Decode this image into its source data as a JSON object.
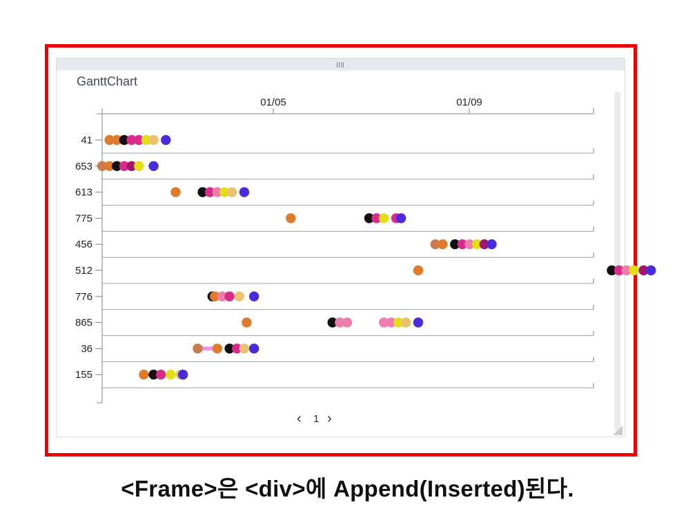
{
  "widget": {
    "title": "GanttChart"
  },
  "axis": {
    "tick_labels": [
      "01/05",
      "01/09"
    ]
  },
  "chart_data": {
    "type": "gantt",
    "title": "GanttChart",
    "x_tick_labels": [
      "01/05",
      "01/09"
    ],
    "rows": [
      {
        "label": "41",
        "dots": [
          {
            "x": 1.15,
            "c": "#e07b2c"
          },
          {
            "x": 1.3,
            "c": "#e07b2c"
          },
          {
            "x": 1.45,
            "c": "#111111"
          },
          {
            "x": 1.6,
            "c": "#d92b8a"
          },
          {
            "x": 1.75,
            "c": "#d92b8a"
          },
          {
            "x": 1.9,
            "c": "#e3df16"
          },
          {
            "x": 2.05,
            "c": "#ebc26f"
          },
          {
            "x": 2.3,
            "c": "#4a2bdb"
          }
        ]
      },
      {
        "label": "653",
        "dots": [
          {
            "x": 1.0,
            "c": "#c97a4f"
          },
          {
            "x": 1.15,
            "c": "#e07b2c"
          },
          {
            "x": 1.3,
            "c": "#111111"
          },
          {
            "x": 1.45,
            "c": "#d92b8a"
          },
          {
            "x": 1.6,
            "c": "#a4156e"
          },
          {
            "x": 1.75,
            "c": "#e3df16"
          },
          {
            "x": 2.05,
            "c": "#4a2bdb"
          }
        ]
      },
      {
        "label": "613",
        "dots": [
          {
            "x": 2.5,
            "c": "#e07b2c"
          },
          {
            "x": 3.05,
            "c": "#111111"
          },
          {
            "x": 3.2,
            "c": "#d92b8a"
          },
          {
            "x": 3.35,
            "c": "#ee7dac"
          },
          {
            "x": 3.5,
            "c": "#e3df16"
          },
          {
            "x": 3.65,
            "c": "#ebc26f"
          },
          {
            "x": 3.9,
            "c": "#4a2bdb"
          }
        ]
      },
      {
        "label": "775",
        "dots": [
          {
            "x": 4.85,
            "c": "#e07b2c"
          },
          {
            "x": 6.45,
            "c": "#111111"
          },
          {
            "x": 6.6,
            "c": "#d92b8a"
          },
          {
            "x": 6.75,
            "c": "#e3df16"
          },
          {
            "x": 7.0,
            "c": "#d92b8a"
          },
          {
            "x": 7.1,
            "c": "#4a2bdb"
          }
        ]
      },
      {
        "label": "456",
        "dots": [
          {
            "x": 7.8,
            "c": "#c97a4f"
          },
          {
            "x": 7.95,
            "c": "#e07b2c"
          },
          {
            "x": 8.2,
            "c": "#111111"
          },
          {
            "x": 8.35,
            "c": "#d92b8a"
          },
          {
            "x": 8.5,
            "c": "#ee7dac"
          },
          {
            "x": 8.65,
            "c": "#e3df16"
          },
          {
            "x": 8.8,
            "c": "#a4156e"
          },
          {
            "x": 8.95,
            "c": "#4a2bdb"
          }
        ]
      },
      {
        "label": "512",
        "dots": [
          {
            "x": 7.45,
            "c": "#e07b2c"
          },
          {
            "x": 11.4,
            "c": "#111111"
          },
          {
            "x": 11.55,
            "c": "#d92b8a"
          },
          {
            "x": 11.7,
            "c": "#ee7dac"
          },
          {
            "x": 11.85,
            "c": "#e3df16"
          },
          {
            "x": 12.05,
            "c": "#a4156e"
          },
          {
            "x": 12.2,
            "c": "#4a2bdb"
          }
        ]
      },
      {
        "label": "776",
        "dots": [
          {
            "x": 3.25,
            "c": "#111111"
          },
          {
            "x": 3.3,
            "c": "#e07b2c"
          },
          {
            "x": 3.45,
            "c": "#ee7dac"
          },
          {
            "x": 3.6,
            "c": "#d92b8a"
          },
          {
            "x": 3.8,
            "c": "#ebc26f"
          },
          {
            "x": 4.1,
            "c": "#4a2bdb"
          }
        ]
      },
      {
        "label": "865",
        "dots": [
          {
            "x": 3.95,
            "c": "#e07b2c"
          },
          {
            "x": 5.7,
            "c": "#111111"
          },
          {
            "x": 5.85,
            "c": "#ee7dac"
          },
          {
            "x": 6.0,
            "c": "#ee7dac"
          },
          {
            "x": 6.75,
            "c": "#ee7dac"
          },
          {
            "x": 6.9,
            "c": "#ee7dac"
          },
          {
            "x": 7.05,
            "c": "#e3df16"
          },
          {
            "x": 7.2,
            "c": "#ebc26f"
          },
          {
            "x": 7.45,
            "c": "#4a2bdb"
          }
        ]
      },
      {
        "label": "36",
        "dots": [
          {
            "x": 2.95,
            "c": "#c97a4f"
          },
          {
            "x": 3.35,
            "c": "#e07b2c"
          },
          {
            "x": 3.6,
            "c": "#111111"
          },
          {
            "x": 3.75,
            "c": "#d92b8a"
          },
          {
            "x": 3.9,
            "c": "#ebc26f"
          },
          {
            "x": 4.1,
            "c": "#4a2bdb"
          }
        ],
        "bar": [
          2.95,
          3.35
        ],
        "bar_color": "#e39be6"
      },
      {
        "label": "155",
        "dots": [
          {
            "x": 1.85,
            "c": "#e07b2c"
          },
          {
            "x": 2.05,
            "c": "#111111"
          },
          {
            "x": 2.2,
            "c": "#d92b8a"
          },
          {
            "x": 2.4,
            "c": "#e3df16"
          },
          {
            "x": 2.6,
            "c": "#ebc26f"
          },
          {
            "x": 2.65,
            "c": "#4a2bdb"
          }
        ]
      }
    ]
  },
  "pager": {
    "prev": "‹",
    "page": "1",
    "next": "›"
  },
  "caption": "<Frame>은 <div>에 Append(Inserted)된다."
}
